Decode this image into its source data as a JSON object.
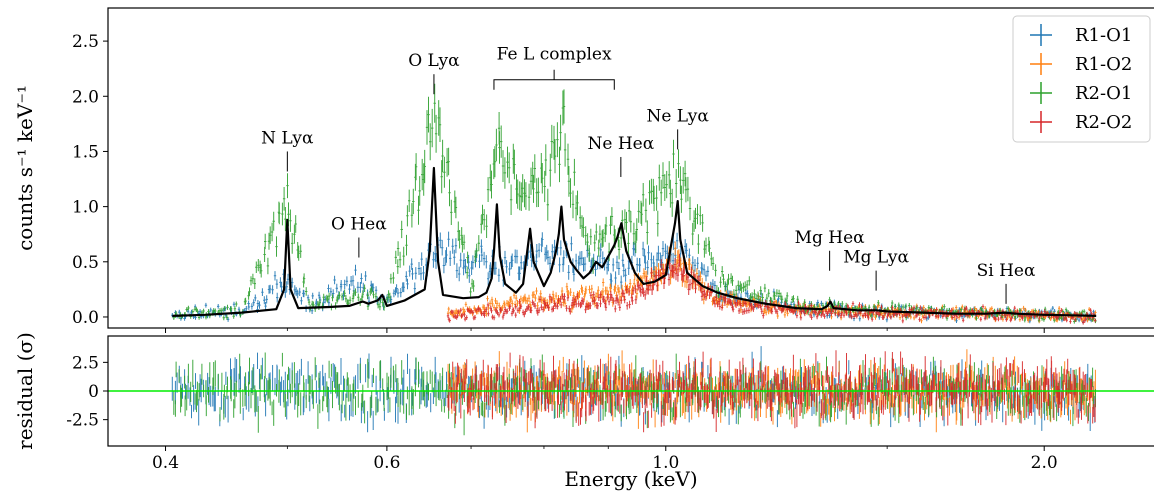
{
  "chart_data": {
    "type": "scatter",
    "x_scale": "log",
    "xlabel": "Energy (keV)",
    "xlim": [
      0.36,
      2.45
    ],
    "x_ticks": [
      {
        "value": 0.4,
        "label": "0.4"
      },
      {
        "value": 0.6,
        "label": "0.6"
      },
      {
        "value": 1.0,
        "label": "1.0"
      },
      {
        "value": 2.0,
        "label": "2.0"
      }
    ],
    "top_panel": {
      "ylabel": "counts s⁻¹ keV⁻¹",
      "ylim": [
        -0.1,
        2.8
      ],
      "y_ticks": [
        {
          "value": 0.0,
          "label": "0.0"
        },
        {
          "value": 0.5,
          "label": "0.5"
        },
        {
          "value": 1.0,
          "label": "1.0"
        },
        {
          "value": 1.5,
          "label": "1.5"
        },
        {
          "value": 2.0,
          "label": "2.0"
        },
        {
          "value": 2.5,
          "label": "2.5"
        }
      ],
      "model_color": "#000000",
      "model_points": [
        [
          0.405,
          0.01
        ],
        [
          0.43,
          0.02
        ],
        [
          0.46,
          0.04
        ],
        [
          0.49,
          0.07
        ],
        [
          0.497,
          0.25
        ],
        [
          0.5,
          0.88
        ],
        [
          0.503,
          0.25
        ],
        [
          0.51,
          0.08
        ],
        [
          0.54,
          0.09
        ],
        [
          0.56,
          0.1
        ],
        [
          0.574,
          0.14
        ],
        [
          0.58,
          0.12
        ],
        [
          0.59,
          0.15
        ],
        [
          0.595,
          0.2
        ],
        [
          0.6,
          0.1
        ],
        [
          0.62,
          0.15
        ],
        [
          0.643,
          0.25
        ],
        [
          0.649,
          0.6
        ],
        [
          0.654,
          1.35
        ],
        [
          0.659,
          0.5
        ],
        [
          0.665,
          0.2
        ],
        [
          0.69,
          0.17
        ],
        [
          0.71,
          0.18
        ],
        [
          0.72,
          0.22
        ],
        [
          0.727,
          0.35
        ],
        [
          0.73,
          0.6
        ],
        [
          0.734,
          1.02
        ],
        [
          0.738,
          0.55
        ],
        [
          0.745,
          0.3
        ],
        [
          0.76,
          0.22
        ],
        [
          0.77,
          0.3
        ],
        [
          0.776,
          0.6
        ],
        [
          0.78,
          0.8
        ],
        [
          0.785,
          0.5
        ],
        [
          0.8,
          0.28
        ],
        [
          0.81,
          0.4
        ],
        [
          0.818,
          0.6
        ],
        [
          0.822,
          0.75
        ],
        [
          0.826,
          1.0
        ],
        [
          0.83,
          0.7
        ],
        [
          0.84,
          0.5
        ],
        [
          0.85,
          0.42
        ],
        [
          0.86,
          0.35
        ],
        [
          0.87,
          0.4
        ],
        [
          0.88,
          0.5
        ],
        [
          0.89,
          0.45
        ],
        [
          0.9,
          0.55
        ],
        [
          0.905,
          0.6
        ],
        [
          0.91,
          0.65
        ],
        [
          0.915,
          0.72
        ],
        [
          0.922,
          0.85
        ],
        [
          0.93,
          0.6
        ],
        [
          0.945,
          0.4
        ],
        [
          0.96,
          0.3
        ],
        [
          0.98,
          0.32
        ],
        [
          1.0,
          0.38
        ],
        [
          1.017,
          0.85
        ],
        [
          1.022,
          1.05
        ],
        [
          1.027,
          0.7
        ],
        [
          1.04,
          0.4
        ],
        [
          1.07,
          0.28
        ],
        [
          1.1,
          0.22
        ],
        [
          1.14,
          0.17
        ],
        [
          1.2,
          0.12
        ],
        [
          1.27,
          0.08
        ],
        [
          1.33,
          0.07
        ],
        [
          1.345,
          0.1
        ],
        [
          1.352,
          0.14
        ],
        [
          1.36,
          0.08
        ],
        [
          1.42,
          0.06
        ],
        [
          1.47,
          0.06
        ],
        [
          1.5,
          0.05
        ],
        [
          1.6,
          0.04
        ],
        [
          1.7,
          0.03
        ],
        [
          1.8,
          0.03
        ],
        [
          1.86,
          0.04
        ],
        [
          1.9,
          0.03
        ],
        [
          2.0,
          0.02
        ],
        [
          2.1,
          0.015
        ],
        [
          2.2,
          0.01
        ]
      ],
      "series": [
        {
          "name": "R1-O1",
          "color": "#1f77b4",
          "x_range": [
            0.405,
            2.2
          ],
          "level": [
            [
              0.405,
              0.02
            ],
            [
              0.46,
              0.05
            ],
            [
              0.5,
              0.35
            ],
            [
              0.52,
              0.1
            ],
            [
              0.57,
              0.35
            ],
            [
              0.6,
              0.12
            ],
            [
              0.654,
              0.6
            ],
            [
              0.73,
              0.45
            ],
            [
              0.826,
              0.55
            ],
            [
              0.922,
              0.45
            ],
            [
              1.022,
              0.6
            ],
            [
              1.1,
              0.22
            ],
            [
              1.3,
              0.07
            ],
            [
              1.6,
              0.04
            ],
            [
              2.2,
              0.01
            ]
          ]
        },
        {
          "name": "R1-O2",
          "color": "#ff7f0e",
          "x_range": [
            0.67,
            2.2
          ],
          "level": [
            [
              0.67,
              0.02
            ],
            [
              0.73,
              0.1
            ],
            [
              0.826,
              0.18
            ],
            [
              0.922,
              0.22
            ],
            [
              1.022,
              0.5
            ],
            [
              1.1,
              0.15
            ],
            [
              1.3,
              0.06
            ],
            [
              1.6,
              0.04
            ],
            [
              2.2,
              0.01
            ]
          ]
        },
        {
          "name": "R2-O1",
          "color": "#2ca02c",
          "x_range": [
            0.405,
            2.2
          ],
          "level": [
            [
              0.405,
              0.02
            ],
            [
              0.46,
              0.06
            ],
            [
              0.5,
              1.05
            ],
            [
              0.52,
              0.12
            ],
            [
              0.57,
              0.18
            ],
            [
              0.6,
              0.15
            ],
            [
              0.654,
              1.78
            ],
            [
              0.7,
              0.25
            ],
            [
              0.734,
              1.45
            ],
            [
              0.78,
              1.15
            ],
            [
              0.826,
              1.6
            ],
            [
              0.87,
              0.6
            ],
            [
              0.922,
              0.8
            ],
            [
              1.022,
              1.25
            ],
            [
              1.1,
              0.35
            ],
            [
              1.3,
              0.1
            ],
            [
              1.6,
              0.05
            ],
            [
              2.2,
              0.01
            ]
          ]
        },
        {
          "name": "R2-O2",
          "color": "#d62728",
          "x_range": [
            0.67,
            2.2
          ],
          "level": [
            [
              0.67,
              0.01
            ],
            [
              0.73,
              0.05
            ],
            [
              0.826,
              0.12
            ],
            [
              0.922,
              0.15
            ],
            [
              1.022,
              0.45
            ],
            [
              1.1,
              0.12
            ],
            [
              1.3,
              0.05
            ],
            [
              1.6,
              0.03
            ],
            [
              2.2,
              0.01
            ]
          ]
        }
      ],
      "annotations": [
        {
          "label": "N Lyα",
          "x": 0.5,
          "y": 1.5
        },
        {
          "label": "O Heα",
          "x": 0.57,
          "y": 0.72
        },
        {
          "label": "O Lyα",
          "x": 0.654,
          "y": 2.2
        },
        {
          "label": "Ne Heα",
          "x": 0.921,
          "y": 1.45
        },
        {
          "label": "Ne Lyα",
          "x": 1.022,
          "y": 1.7
        },
        {
          "label": "Mg Heα",
          "x": 1.35,
          "y": 0.6
        },
        {
          "label": "Mg Lyα",
          "x": 1.47,
          "y": 0.42
        },
        {
          "label": "Si Heα",
          "x": 1.865,
          "y": 0.3
        }
      ],
      "bracket": {
        "label": "Fe L complex",
        "x_start": 0.73,
        "x_end": 0.91,
        "y": 2.15
      }
    },
    "bottom_panel": {
      "ylabel": "residual (σ)",
      "ylim": [
        -4.8,
        4.8
      ],
      "y_ticks": [
        {
          "value": 2.5,
          "label": "2.5"
        },
        {
          "value": 0,
          "label": "0"
        },
        {
          "value": -2.5,
          "label": "-2.5"
        }
      ],
      "zero_line_color": "#00ee00"
    },
    "legend": {
      "position": "top-right"
    }
  }
}
